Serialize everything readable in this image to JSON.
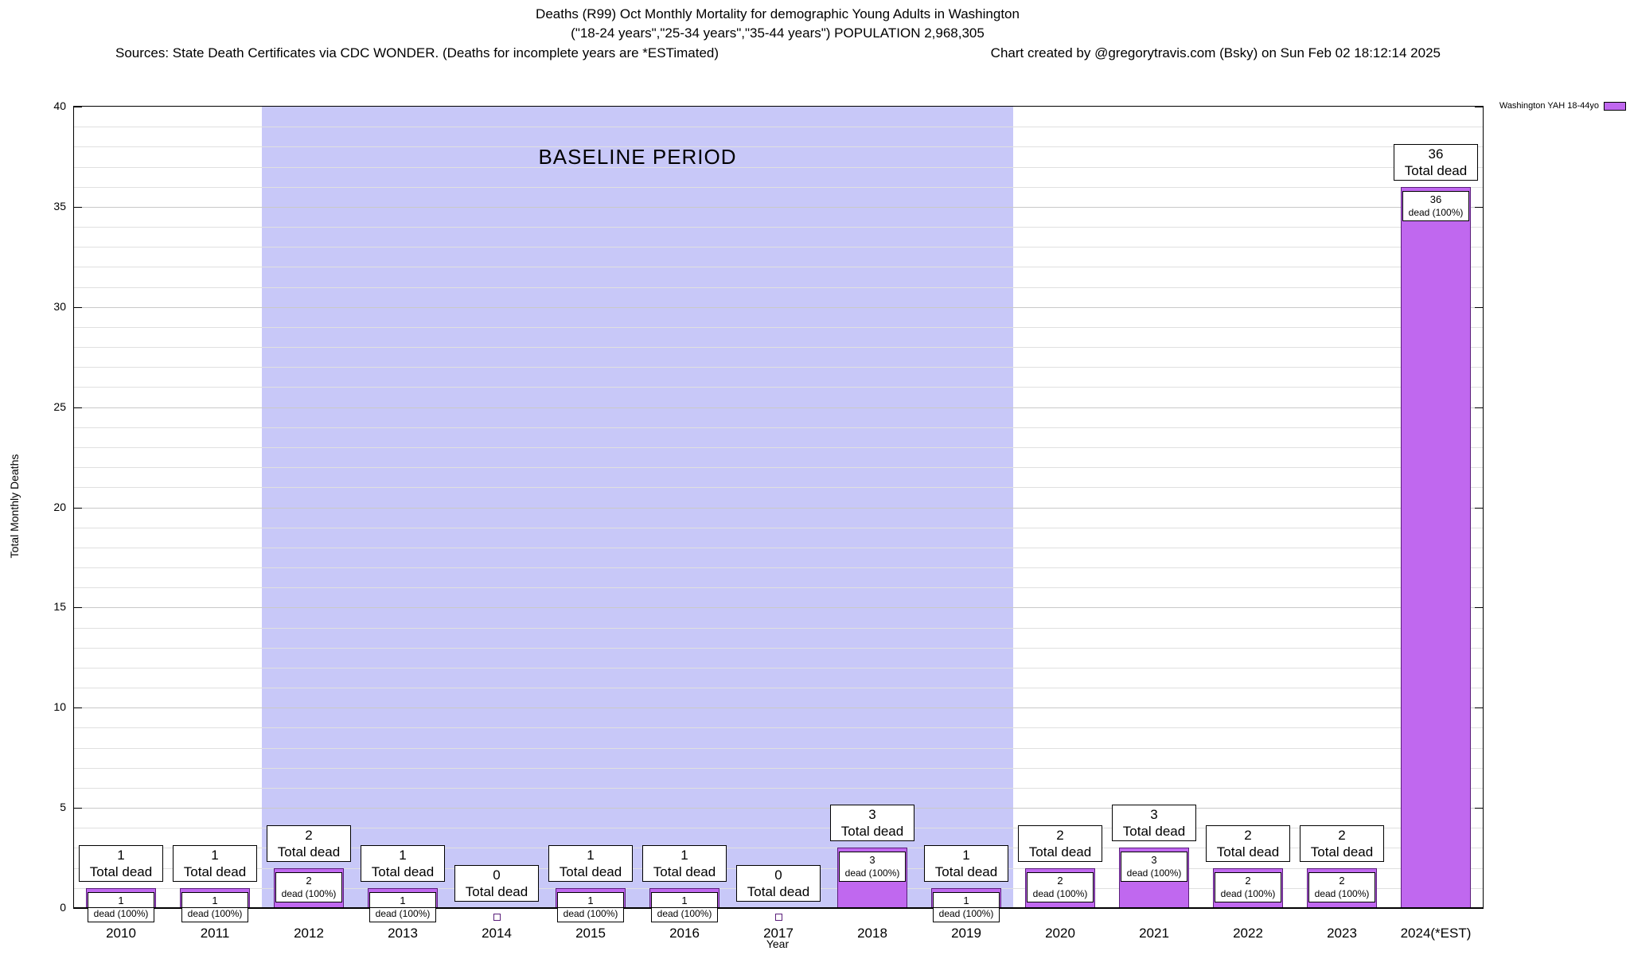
{
  "chart_data": {
    "type": "bar",
    "title": "Deaths (R99) Oct Monthly Mortality for demographic Young Adults in Washington",
    "subtitle": "(\"18-24 years\",\"25-34 years\",\"35-44 years\") POPULATION 2,968,305",
    "sources_note": "Sources: State Death Certificates via CDC WONDER. (Deaths for incomplete years are *ESTimated)",
    "credit_note": "Chart created by @gregorytravis.com (Bsky) on Sun Feb 02 18:12:14 2025",
    "xlabel": "Year",
    "ylabel": "Total Monthly Deaths",
    "ylim": [
      0,
      40
    ],
    "y_major_tick_step": 5,
    "y_minor_tick_step": 1,
    "grid": true,
    "legend": {
      "label": "Washington YAH 18-44yo",
      "position": "top-right",
      "swatch_color": "#c068ef"
    },
    "categories": [
      "2010",
      "2011",
      "2012",
      "2013",
      "2014",
      "2015",
      "2016",
      "2017",
      "2018",
      "2019",
      "2020",
      "2021",
      "2022",
      "2023",
      "2024(*EST)"
    ],
    "values": [
      1,
      1,
      2,
      1,
      0,
      1,
      1,
      0,
      3,
      1,
      2,
      3,
      2,
      2,
      36
    ],
    "bar_color": "#c068ef",
    "bar_border_color": "#5a1e7a",
    "baseline": {
      "label": "BASELINE PERIOD",
      "start_category": "2012",
      "end_category": "2019",
      "color": "#c8c8f8"
    },
    "annotations": {
      "total_label": "Total dead",
      "pct_label": "dead (100%)"
    }
  }
}
